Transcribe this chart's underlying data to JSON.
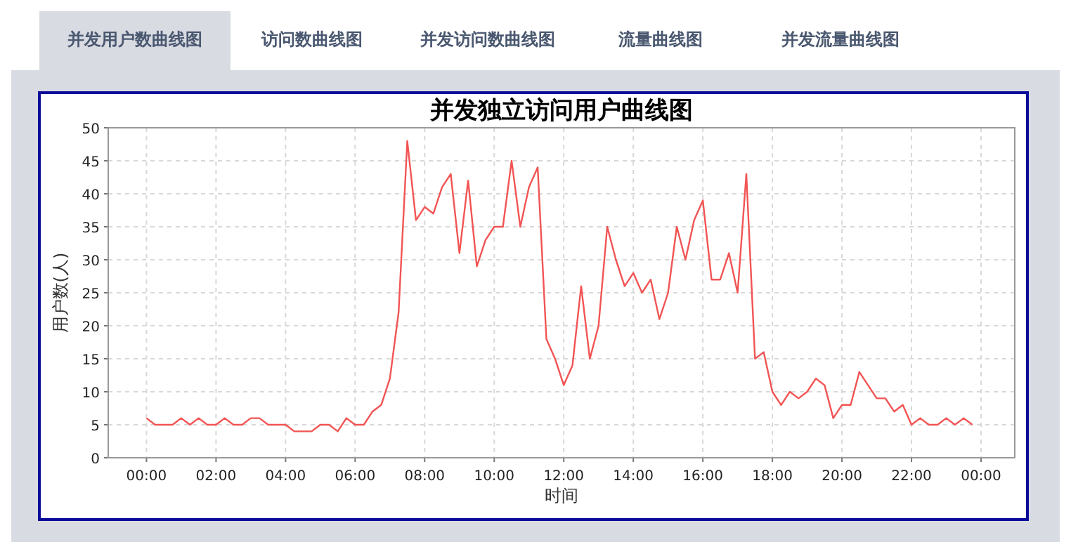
{
  "chart_data": {
    "type": "line",
    "title": "并发独立访问用户曲线图",
    "xlabel": "时间",
    "ylabel": "用户数(人)",
    "annotations": [
      "并发用户数曲线图",
      "访问数曲线图",
      "并发访问数曲线图",
      "流量曲线图",
      "并发流量曲线图"
    ],
    "x": [
      0,
      0.25,
      0.5,
      0.75,
      1,
      1.25,
      1.5,
      1.75,
      2,
      2.25,
      2.5,
      2.75,
      3,
      3.25,
      3.5,
      3.75,
      4,
      4.25,
      4.5,
      4.75,
      5,
      5.25,
      5.5,
      5.75,
      6,
      6.25,
      6.5,
      6.75,
      7,
      7.25,
      7.5,
      7.75,
      8,
      8.25,
      8.5,
      8.75,
      9,
      9.25,
      9.5,
      9.75,
      10,
      10.25,
      10.5,
      10.75,
      11,
      11.25,
      11.5,
      11.75,
      12,
      12.25,
      12.5,
      12.75,
      13,
      13.25,
      13.5,
      13.75,
      14,
      14.25,
      14.5,
      14.75,
      15,
      15.25,
      15.5,
      15.75,
      16,
      16.25,
      16.5,
      16.75,
      17,
      17.25,
      17.5,
      17.75,
      18,
      18.25,
      18.5,
      18.75,
      19,
      19.25,
      19.5,
      19.75,
      20,
      20.25,
      20.5,
      20.75,
      21,
      21.25,
      21.5,
      21.75,
      22,
      22.25,
      22.5,
      22.75,
      23,
      23.25,
      23.5,
      23.75
    ],
    "series": [
      {
        "color": "#f25454",
        "values": [
          6,
          5,
          5,
          5,
          6,
          5,
          6,
          5,
          5,
          6,
          5,
          5,
          6,
          6,
          5,
          5,
          5,
          4,
          4,
          4,
          5,
          5,
          4,
          6,
          5,
          5,
          7,
          8,
          12,
          22,
          48,
          36,
          38,
          37,
          41,
          43,
          31,
          42,
          29,
          33,
          35,
          35,
          45,
          35,
          41,
          44,
          18,
          15,
          11,
          14,
          26,
          15,
          20,
          35,
          30,
          26,
          28,
          25,
          27,
          21,
          25,
          35,
          30,
          36,
          39,
          27,
          27,
          31,
          25,
          43,
          15,
          16,
          10,
          8,
          10,
          9,
          10,
          12,
          11,
          6,
          8,
          8,
          13,
          11,
          9,
          9,
          7,
          8,
          5,
          6,
          5,
          5,
          6,
          5,
          6,
          5
        ]
      }
    ],
    "xlim": [
      -1.1,
      24.97
    ],
    "ylim": [
      0,
      50
    ],
    "xticks": [
      {
        "value": 0,
        "label": "00:00"
      },
      {
        "value": 2,
        "label": "02:00"
      },
      {
        "value": 4,
        "label": "04:00"
      },
      {
        "value": 6,
        "label": "06:00"
      },
      {
        "value": 8,
        "label": "08:00"
      },
      {
        "value": 10,
        "label": "10:00"
      },
      {
        "value": 12,
        "label": "12:00"
      },
      {
        "value": 14,
        "label": "14:00"
      },
      {
        "value": 16,
        "label": "16:00"
      },
      {
        "value": 18,
        "label": "18:00"
      },
      {
        "value": 20,
        "label": "20:00"
      },
      {
        "value": 22,
        "label": "22:00"
      },
      {
        "value": 24,
        "label": "00:00"
      }
    ],
    "yticks": [
      0,
      5,
      10,
      15,
      20,
      25,
      30,
      35,
      40,
      45,
      50
    ],
    "grid": true,
    "line_style": "solid",
    "marker": "none"
  }
}
